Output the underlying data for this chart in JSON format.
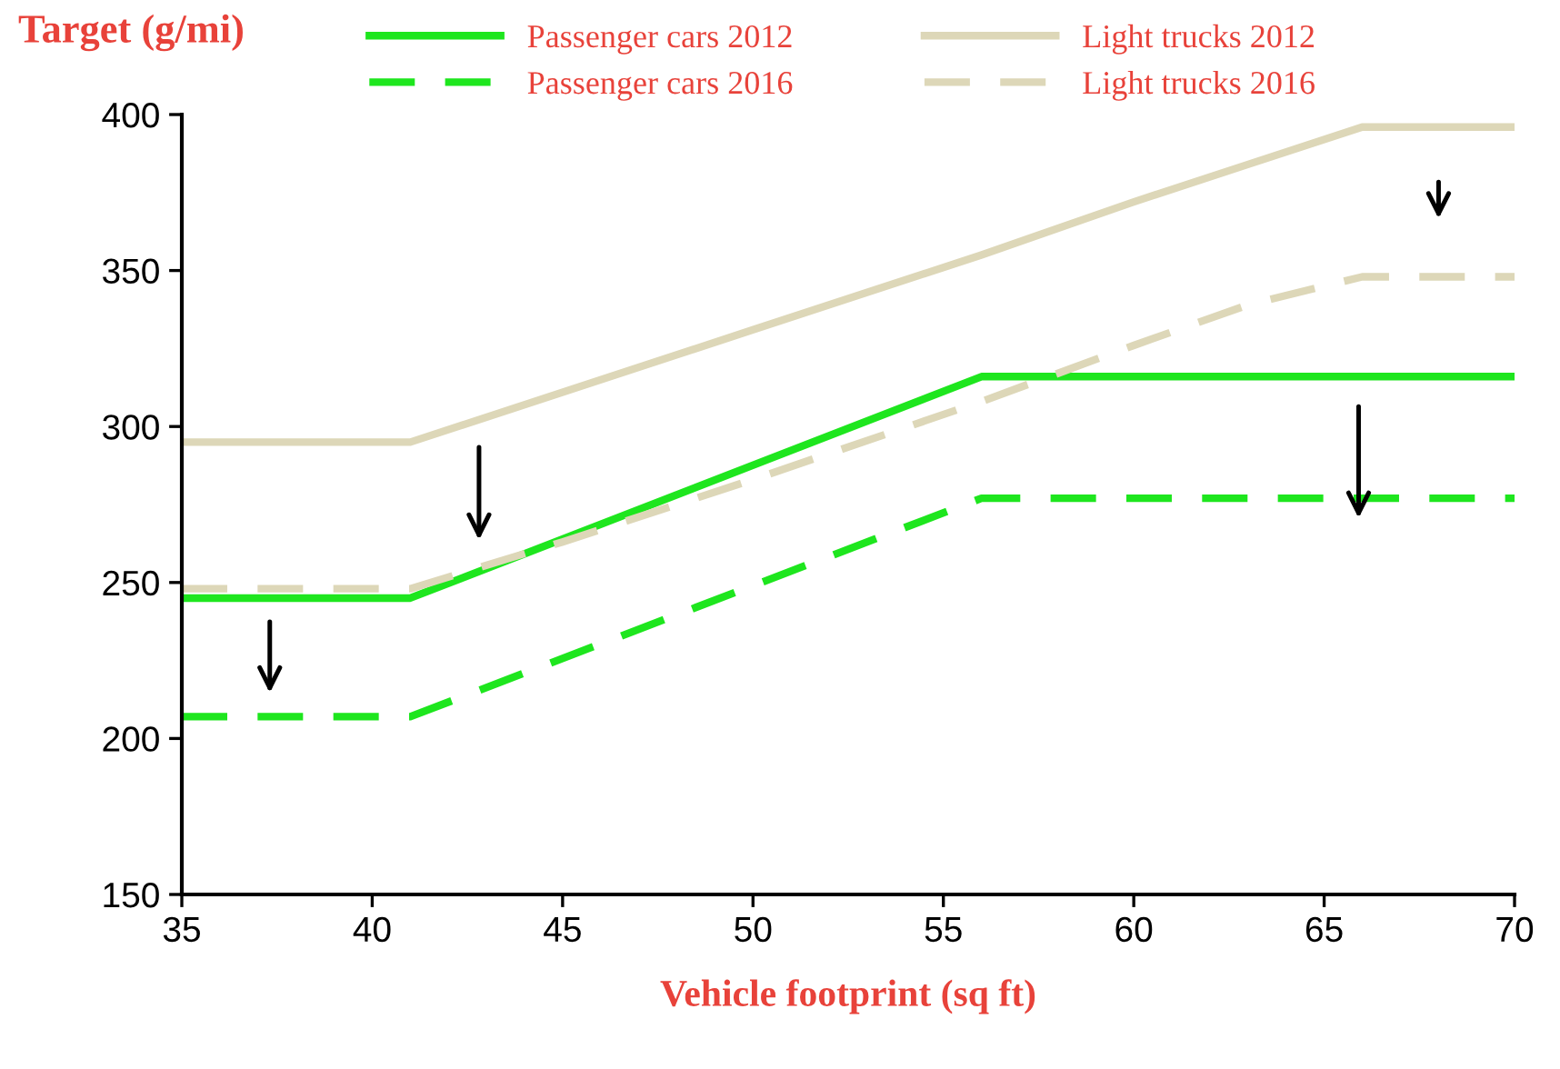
{
  "chart_data": {
    "type": "line",
    "title": "Target (g/mi)",
    "xlabel": "Vehicle footprint (sq ft)",
    "xlim": [
      35,
      70
    ],
    "xticks": [
      35,
      40,
      45,
      50,
      55,
      60,
      65,
      70
    ],
    "ylim": [
      150,
      400
    ],
    "yticks": [
      150,
      200,
      250,
      300,
      350,
      400
    ],
    "grid": false,
    "legend": "top",
    "marker": "none",
    "series": [
      {
        "name": "Passenger cars 2012",
        "color": "#1ee61e",
        "line_style": "solid",
        "x": [
          35,
          41,
          56,
          70
        ],
        "values": [
          245,
          245,
          316,
          316
        ]
      },
      {
        "name": "Passenger cars 2016",
        "color": "#1ee61e",
        "line_style": "dashed",
        "x": [
          35,
          41,
          56,
          70
        ],
        "values": [
          207,
          207,
          277,
          277
        ]
      },
      {
        "name": "Light trucks 2012",
        "color": "#ddd7b8",
        "line_style": "solid",
        "x": [
          35,
          41,
          50,
          56,
          60,
          63,
          66,
          70
        ],
        "values": [
          295,
          295,
          331,
          355,
          372,
          384,
          396,
          396
        ]
      },
      {
        "name": "Light trucks 2016",
        "color": "#ddd7b8",
        "line_style": "dashed",
        "x": [
          35,
          41,
          45,
          50,
          56,
          60,
          63,
          66,
          70
        ],
        "values": [
          248,
          248,
          263,
          283,
          308,
          326,
          339,
          348,
          348
        ]
      }
    ]
  }
}
